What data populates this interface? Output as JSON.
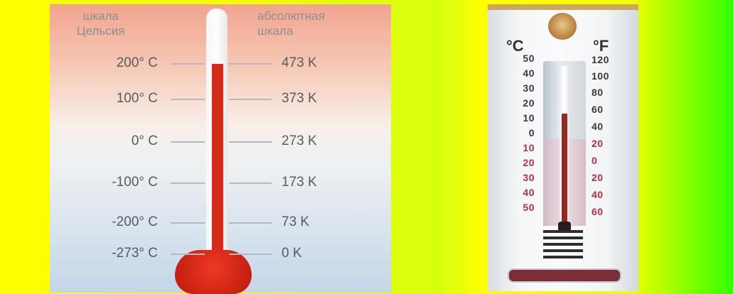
{
  "left_thermometer": {
    "caption_celsius_line1": "шкала",
    "caption_celsius_line2": "Цельсия",
    "caption_kelvin_line1": "абсолютная",
    "caption_kelvin_line2": "шкала",
    "rows": [
      {
        "celsius": "200° C",
        "kelvin": "473 K"
      },
      {
        "celsius": "100° C",
        "kelvin": "373 K"
      },
      {
        "celsius": "0° C",
        "kelvin": "273 K"
      },
      {
        "celsius": "-100° C",
        "kelvin": "173 K"
      },
      {
        "celsius": "-200° C",
        "kelvin": "73 K"
      },
      {
        "celsius": "-273° C",
        "kelvin": "0 K"
      }
    ]
  },
  "right_thermometer": {
    "unit_c": "°C",
    "unit_f": "°F",
    "celsius_marks": [
      {
        "label": "50",
        "color": "#3a3a3a"
      },
      {
        "label": "40",
        "color": "#3a3a3a"
      },
      {
        "label": "30",
        "color": "#3a3a3a"
      },
      {
        "label": "20",
        "color": "#3a3a3a"
      },
      {
        "label": "10",
        "color": "#3a3a3a"
      },
      {
        "label": "0",
        "color": "#3a3a3a"
      },
      {
        "label": "10",
        "color": "#b0304a"
      },
      {
        "label": "20",
        "color": "#b0304a"
      },
      {
        "label": "30",
        "color": "#b0304a"
      },
      {
        "label": "40",
        "color": "#b0304a"
      },
      {
        "label": "50",
        "color": "#b0304a"
      }
    ],
    "fahrenheit_marks": [
      {
        "label": "120",
        "color": "#3a3a3a"
      },
      {
        "label": "100",
        "color": "#3a3a3a"
      },
      {
        "label": "80",
        "color": "#3a3a3a"
      },
      {
        "label": "60",
        "color": "#3a3a3a"
      },
      {
        "label": "40",
        "color": "#3a3a3a"
      },
      {
        "label": "20",
        "color": "#b0304a"
      },
      {
        "label": "0",
        "color": "#b0304a"
      },
      {
        "label": "20",
        "color": "#b0304a"
      },
      {
        "label": "40",
        "color": "#b0304a"
      },
      {
        "label": "60",
        "color": "#b0304a"
      }
    ]
  }
}
